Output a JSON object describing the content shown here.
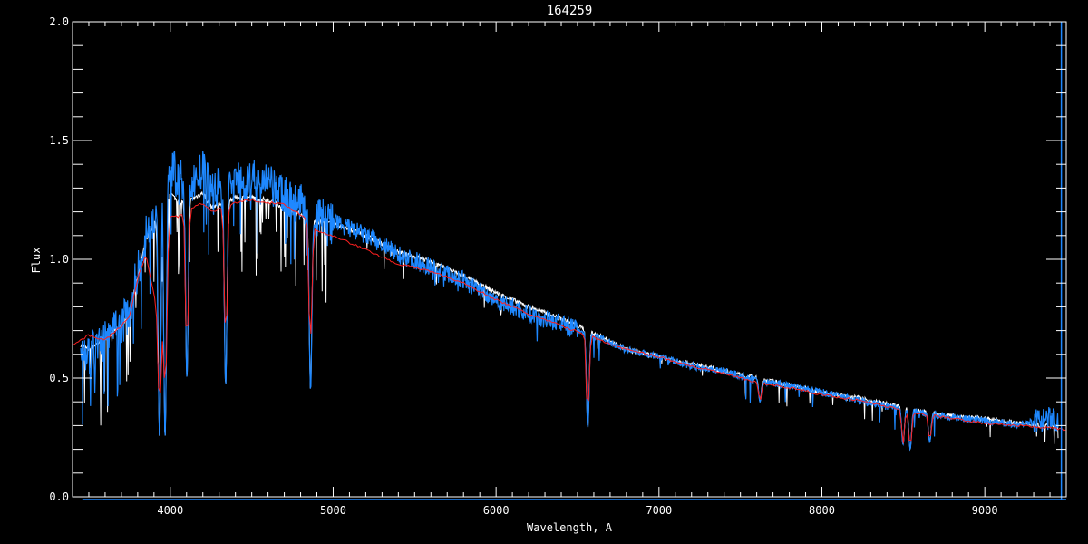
{
  "chart_data": {
    "type": "line",
    "title": "164259",
    "xlabel": "Wavelength, A",
    "ylabel": "Flux",
    "xlim": [
      3400,
      9500
    ],
    "ylim": [
      0.0,
      2.0
    ],
    "x_ticks": [
      4000,
      5000,
      6000,
      7000,
      8000,
      9000
    ],
    "x_tick_labels": [
      "4000",
      "5000",
      "6000",
      "7000",
      "8000",
      "9000"
    ],
    "y_ticks": [
      0.0,
      0.5,
      1.0,
      1.5,
      2.0
    ],
    "y_tick_labels": [
      "0.0",
      "0.5",
      "1.0",
      "1.5",
      "2.0"
    ],
    "x_minor_step": 100,
    "y_minor_step": 0.1,
    "grid": false,
    "background": "#000000",
    "series": [
      {
        "color": "#ffffff",
        "x": [
          3450,
          3500,
          3600,
          3700,
          3750,
          3800,
          3850,
          3900,
          4000,
          4050,
          4150,
          4200,
          4250,
          4400,
          4500,
          4600,
          4700,
          4800,
          4900,
          5000,
          5200,
          5400,
          5600,
          5800,
          6000,
          6200,
          6400,
          6600,
          6800,
          7000,
          7200,
          7400,
          7600,
          7800,
          8000,
          8200,
          8400,
          8600,
          8800,
          9000,
          9200,
          9400,
          9450
        ],
        "y": [
          0.64,
          0.62,
          0.67,
          0.72,
          0.78,
          0.93,
          1.08,
          1.15,
          1.28,
          1.24,
          1.26,
          1.28,
          1.22,
          1.26,
          1.26,
          1.25,
          1.22,
          1.19,
          1.16,
          1.15,
          1.1,
          1.03,
          0.99,
          0.93,
          0.86,
          0.8,
          0.75,
          0.69,
          0.62,
          0.59,
          0.56,
          0.53,
          0.5,
          0.47,
          0.44,
          0.42,
          0.39,
          0.36,
          0.34,
          0.33,
          0.31,
          0.3,
          0.3
        ]
      },
      {
        "color": "#1e88ff",
        "x": [
          3450,
          3500,
          3600,
          3700,
          3750,
          3800,
          3850,
          3900,
          4000,
          4050,
          4150,
          4200,
          4250,
          4400,
          4500,
          4600,
          4700,
          4800,
          4900,
          5000,
          5200,
          5400,
          5600,
          5800,
          6000,
          6200,
          6400,
          6600,
          6800,
          7000,
          7200,
          7400,
          7600,
          7800,
          8000,
          8200,
          8400,
          8600,
          8800,
          9000,
          9200,
          9400,
          9450
        ],
        "y": [
          0.62,
          0.6,
          0.66,
          0.72,
          0.79,
          0.95,
          1.1,
          1.18,
          1.4,
          1.33,
          1.33,
          1.37,
          1.29,
          1.33,
          1.33,
          1.31,
          1.27,
          1.23,
          1.18,
          1.16,
          1.1,
          1.02,
          0.97,
          0.91,
          0.83,
          0.77,
          0.73,
          0.68,
          0.62,
          0.59,
          0.55,
          0.53,
          0.49,
          0.47,
          0.44,
          0.41,
          0.38,
          0.355,
          0.335,
          0.32,
          0.305,
          0.33,
          0.32
        ]
      },
      {
        "color": "#ff2020",
        "x": [
          3400,
          3450,
          3500,
          3600,
          3700,
          3750,
          3800,
          3850,
          3900,
          3950,
          4000,
          4050,
          4150,
          4200,
          4250,
          4400,
          4500,
          4600,
          4700,
          4800,
          4900,
          5000,
          5200,
          5400,
          5600,
          5800,
          6000,
          6200,
          6400,
          6600,
          6800,
          7000,
          7200,
          7400,
          7600,
          7800,
          8000,
          8200,
          8400,
          8600,
          8800,
          9000,
          9200,
          9400,
          9500
        ],
        "y": [
          0.64,
          0.66,
          0.68,
          0.66,
          0.72,
          0.76,
          0.92,
          1.02,
          0.85,
          0.7,
          1.18,
          1.18,
          1.22,
          1.24,
          1.2,
          1.24,
          1.25,
          1.24,
          1.23,
          1.19,
          1.12,
          1.1,
          1.04,
          0.98,
          0.95,
          0.9,
          0.83,
          0.77,
          0.72,
          0.67,
          0.62,
          0.59,
          0.55,
          0.52,
          0.48,
          0.46,
          0.43,
          0.41,
          0.38,
          0.35,
          0.33,
          0.31,
          0.3,
          0.29,
          0.28
        ]
      }
    ],
    "absorption_lines": [
      {
        "wavelength": 3934,
        "flux": 0.25
      },
      {
        "wavelength": 3968,
        "flux": 0.25
      },
      {
        "wavelength": 4102,
        "flux": 0.5
      },
      {
        "wavelength": 4340,
        "flux": 0.47
      },
      {
        "wavelength": 4861,
        "flux": 0.45
      },
      {
        "wavelength": 6563,
        "flux": 0.29
      },
      {
        "wavelength": 7620,
        "flux": 0.4
      },
      {
        "wavelength": 8498,
        "flux": 0.22
      },
      {
        "wavelength": 8542,
        "flux": 0.2
      },
      {
        "wavelength": 8662,
        "flux": 0.23
      }
    ],
    "vertical_marker": {
      "x": 9470,
      "color": "#1e88ff"
    }
  }
}
